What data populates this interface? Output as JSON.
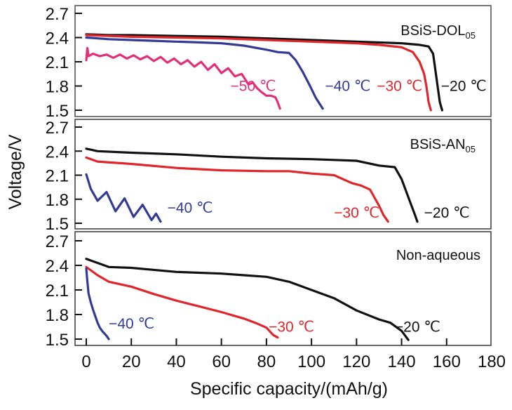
{
  "chart_data": {
    "type": "line",
    "xlabel": "Specific capacity/(mAh/g)",
    "ylabel": "Voltage/V",
    "xlim": [
      0,
      180
    ],
    "x_ticks": [
      0,
      20,
      40,
      60,
      80,
      100,
      120,
      140,
      160,
      180
    ],
    "x_tick_labels": [
      "0",
      "20",
      "40",
      "60",
      "80",
      "100",
      "120",
      "140",
      "160",
      "180"
    ],
    "ylim": [
      1.45,
      2.75
    ],
    "y_ticks": [
      2.7,
      2.4,
      2.1,
      1.8,
      1.5
    ],
    "y_tick_labels": [
      "2.7",
      "2.4",
      "2.1",
      "1.8",
      "1.5"
    ],
    "grid": false,
    "colors": {
      "-20": "#111111",
      "-30": "#e0262a",
      "-40": "#323a96",
      "-50": "#e0307a"
    },
    "panels": [
      {
        "name": "BSiS-DOL05",
        "title_main": "BSiS-DOL",
        "title_sub": "05",
        "series": [
          {
            "name": "-20 ℃",
            "temp": "-20",
            "label": "−20 ℃",
            "x": [
              0,
              10,
              20,
              40,
              60,
              80,
              100,
              120,
              140,
              148,
              152,
              154,
              155,
              156,
              157,
              158
            ],
            "y": [
              2.44,
              2.43,
              2.43,
              2.42,
              2.41,
              2.39,
              2.37,
              2.35,
              2.33,
              2.31,
              2.29,
              2.2,
              2.0,
              1.8,
              1.6,
              1.5
            ]
          },
          {
            "name": "-30 ℃",
            "temp": "-30",
            "label": "−30 ℃",
            "x": [
              0,
              10,
              20,
              40,
              60,
              80,
              100,
              120,
              130,
              140,
              145,
              148,
              150,
              151,
              152,
              153
            ],
            "y": [
              2.43,
              2.42,
              2.41,
              2.4,
              2.39,
              2.37,
              2.35,
              2.33,
              2.31,
              2.28,
              2.22,
              2.1,
              1.95,
              1.8,
              1.6,
              1.5
            ]
          },
          {
            "name": "-40 ℃",
            "temp": "-40",
            "label": "−40 ℃",
            "x": [
              0,
              10,
              20,
              30,
              40,
              50,
              60,
              70,
              80,
              85,
              90,
              93,
              96,
              99,
              102,
              105
            ],
            "y": [
              2.4,
              2.38,
              2.37,
              2.36,
              2.35,
              2.34,
              2.33,
              2.3,
              2.25,
              2.22,
              2.21,
              2.12,
              1.98,
              1.82,
              1.65,
              1.52
            ]
          },
          {
            "name": "-50 ℃",
            "temp": "-50",
            "label": "−50 ℃",
            "x": [
              0,
              0.5,
              1,
              3,
              6,
              9,
              12,
              15,
              18,
              21,
              24,
              27,
              30,
              33,
              36,
              39,
              42,
              45,
              48,
              51,
              54,
              57,
              60,
              63,
              66,
              69,
              72,
              74,
              76,
              78,
              80,
              82,
              84,
              85,
              86
            ],
            "y": [
              2.12,
              2.27,
              2.17,
              2.2,
              2.17,
              2.19,
              2.15,
              2.19,
              2.14,
              2.18,
              2.13,
              2.17,
              2.11,
              2.16,
              2.09,
              2.14,
              2.07,
              2.12,
              2.04,
              2.1,
              2.0,
              2.07,
              1.96,
              2.02,
              1.92,
              1.95,
              1.82,
              1.84,
              1.77,
              1.72,
              1.68,
              1.68,
              1.66,
              1.6,
              1.52
            ]
          }
        ]
      },
      {
        "name": "BSiS-AN05",
        "title_main": "BSiS-AN",
        "title_sub": "05",
        "series": [
          {
            "name": "-20 ℃",
            "temp": "-20",
            "label": "−20 ℃",
            "x": [
              0,
              5,
              20,
              40,
              60,
              80,
              100,
              110,
              120,
              130,
              137,
              140,
              142,
              144,
              146,
              147
            ],
            "y": [
              2.43,
              2.4,
              2.38,
              2.36,
              2.33,
              2.31,
              2.3,
              2.29,
              2.28,
              2.22,
              2.2,
              2.05,
              1.9,
              1.75,
              1.6,
              1.52
            ]
          },
          {
            "name": "-30 ℃",
            "temp": "-30",
            "label": "−30 ℃",
            "x": [
              0,
              5,
              20,
              40,
              60,
              80,
              90,
              100,
              110,
              118,
              122,
              126,
              128,
              130,
              132,
              134
            ],
            "y": [
              2.32,
              2.27,
              2.24,
              2.19,
              2.16,
              2.15,
              2.15,
              2.12,
              2.1,
              2.0,
              1.97,
              1.92,
              1.82,
              1.72,
              1.6,
              1.52
            ]
          },
          {
            "name": "-40 ℃",
            "temp": "-40",
            "label": "−40 ℃",
            "x": [
              0,
              2,
              5,
              9,
              13,
              17,
              21,
              25,
              29,
              31,
              33
            ],
            "y": [
              2.11,
              1.93,
              1.78,
              1.89,
              1.65,
              1.81,
              1.58,
              1.73,
              1.54,
              1.62,
              1.52
            ]
          }
        ]
      },
      {
        "name": "Non-aqueous",
        "title_main": "Non-aqueous",
        "title_sub": "",
        "series": [
          {
            "name": "-20 ℃",
            "temp": "-20",
            "label": "−20 ℃",
            "x": [
              0,
              5,
              10,
              20,
              40,
              60,
              70,
              80,
              90,
              100,
              110,
              120,
              130,
              135,
              140,
              143
            ],
            "y": [
              2.48,
              2.43,
              2.38,
              2.37,
              2.32,
              2.3,
              2.28,
              2.26,
              2.2,
              2.1,
              2.0,
              1.85,
              1.74,
              1.7,
              1.6,
              1.49
            ]
          },
          {
            "name": "-30 ℃",
            "temp": "-30",
            "label": "−30 ℃",
            "x": [
              0,
              5,
              10,
              20,
              30,
              40,
              50,
              60,
              70,
              75,
              80,
              83,
              85
            ],
            "y": [
              2.38,
              2.28,
              2.2,
              2.14,
              2.05,
              1.97,
              1.9,
              1.83,
              1.75,
              1.7,
              1.64,
              1.55,
              1.52
            ]
          },
          {
            "name": "-40 ℃",
            "temp": "-40",
            "label": "−40 ℃",
            "x": [
              0,
              0.5,
              1,
              2,
              3,
              4,
              5,
              6,
              7,
              8,
              9,
              10
            ],
            "y": [
              2.36,
              2.2,
              2.06,
              1.95,
              1.86,
              1.78,
              1.7,
              1.64,
              1.6,
              1.57,
              1.54,
              1.5
            ]
          }
        ]
      }
    ],
    "series_labels": [
      [
        {
          "temp": "-50",
          "text": "−50 ℃",
          "x": 64,
          "y": 1.74
        },
        {
          "temp": "-40",
          "text": "−40 ℃",
          "x": 106,
          "y": 1.74
        },
        {
          "temp": "-30",
          "text": "−30 ℃",
          "x": 129,
          "y": 1.74
        },
        {
          "temp": "-20",
          "text": "−20 ℃",
          "x": 157.5,
          "y": 1.74
        }
      ],
      [
        {
          "temp": "-40",
          "text": "−40 ℃",
          "x": 36,
          "y": 1.63
        },
        {
          "temp": "-30",
          "text": "−30 ℃",
          "x": 110,
          "y": 1.57
        },
        {
          "temp": "-20",
          "text": "−20 ℃",
          "x": 150,
          "y": 1.57
        }
      ],
      [
        {
          "temp": "-40",
          "text": "−40 ℃",
          "x": 10,
          "y": 1.63
        },
        {
          "temp": "-30",
          "text": "−30 ℃",
          "x": 81,
          "y": 1.59
        },
        {
          "temp": "-20",
          "text": "−20 ℃",
          "x": 137,
          "y": 1.59
        }
      ]
    ]
  }
}
